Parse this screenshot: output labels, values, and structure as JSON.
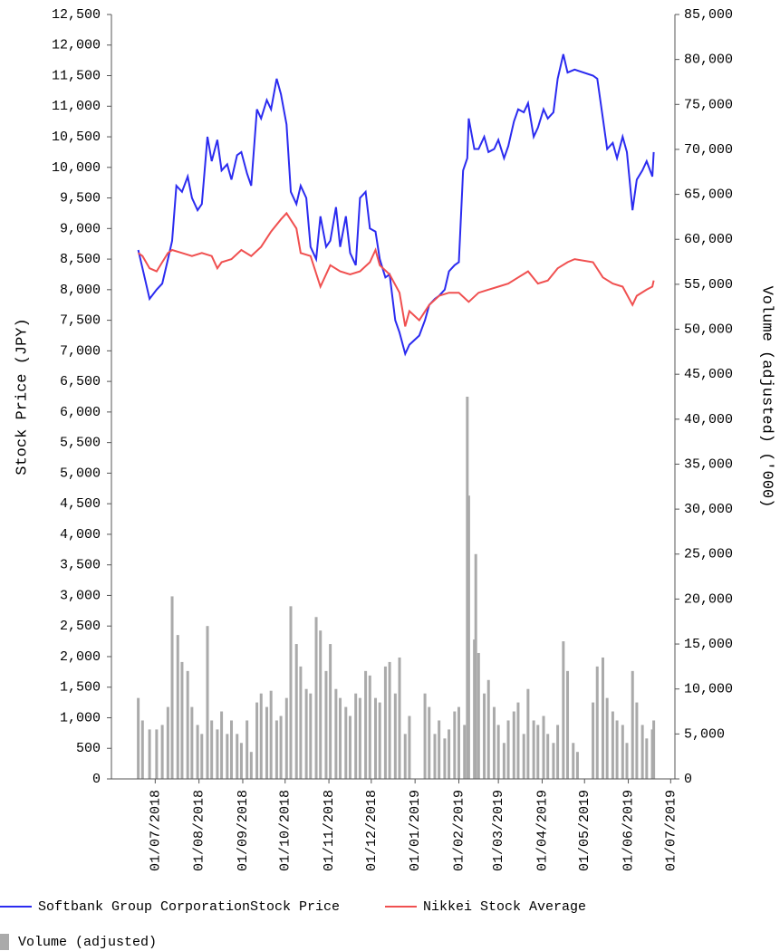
{
  "chart_data": {
    "type": "line",
    "ylabel": "Stock Price (JPY)",
    "y2label": "Volume (adjusted) ('000)",
    "xlim": [
      "2018-05-31",
      "2019-07-04"
    ],
    "xticks": [
      {
        "value": "2018-07-01",
        "label": "01/07/2018"
      },
      {
        "value": "2018-08-01",
        "label": "01/08/2018"
      },
      {
        "value": "2018-09-01",
        "label": "01/09/2018"
      },
      {
        "value": "2018-10-01",
        "label": "01/10/2018"
      },
      {
        "value": "2018-11-01",
        "label": "01/11/2018"
      },
      {
        "value": "2018-12-01",
        "label": "01/12/2018"
      },
      {
        "value": "2019-01-01",
        "label": "01/01/2019"
      },
      {
        "value": "2019-02-01",
        "label": "01/02/2019"
      },
      {
        "value": "2019-03-01",
        "label": "01/03/2019"
      },
      {
        "value": "2019-04-01",
        "label": "01/04/2019"
      },
      {
        "value": "2019-05-01",
        "label": "01/05/2019"
      },
      {
        "value": "2019-06-01",
        "label": "01/06/2019"
      },
      {
        "value": "2019-07-01",
        "label": "01/07/2019"
      }
    ],
    "ylim": [
      0,
      12500
    ],
    "yticks": [
      0,
      500,
      {
        "value": 1000,
        "label": "1,000"
      },
      {
        "value": 1500,
        "label": "1,500"
      },
      {
        "value": 2000,
        "label": "2,000"
      },
      {
        "value": 2500,
        "label": "2,500"
      },
      {
        "value": 3000,
        "label": "3,000"
      },
      {
        "value": 3500,
        "label": "3,500"
      },
      {
        "value": 4000,
        "label": "4,000"
      },
      {
        "value": 4500,
        "label": "4,500"
      },
      {
        "value": 5000,
        "label": "5,000"
      },
      {
        "value": 5500,
        "label": "5,500"
      },
      {
        "value": 6000,
        "label": "6,000"
      },
      {
        "value": 6500,
        "label": "6,500"
      },
      {
        "value": 7000,
        "label": "7,000"
      },
      {
        "value": 7500,
        "label": "7,500"
      },
      {
        "value": 8000,
        "label": "8,000"
      },
      {
        "value": 8500,
        "label": "8,500"
      },
      {
        "value": 9000,
        "label": "9,000"
      },
      {
        "value": 9500,
        "label": "9,500"
      },
      {
        "value": 10000,
        "label": "10,000"
      },
      {
        "value": 10500,
        "label": "10,500"
      },
      {
        "value": 11000,
        "label": "11,000"
      },
      {
        "value": 11500,
        "label": "11,500"
      },
      {
        "value": 12000,
        "label": "12,000"
      },
      {
        "value": 12500,
        "label": "12,500"
      }
    ],
    "y2lim": [
      0,
      85000
    ],
    "y2ticks": [
      0,
      {
        "value": 5000,
        "label": "5,000"
      },
      {
        "value": 10000,
        "label": "10,000"
      },
      {
        "value": 15000,
        "label": "15,000"
      },
      {
        "value": 20000,
        "label": "20,000"
      },
      {
        "value": 25000,
        "label": "25,000"
      },
      {
        "value": 30000,
        "label": "30,000"
      },
      {
        "value": 35000,
        "label": "35,000"
      },
      {
        "value": 40000,
        "label": "40,000"
      },
      {
        "value": 45000,
        "label": "45,000"
      },
      {
        "value": 50000,
        "label": "50,000"
      },
      {
        "value": 55000,
        "label": "55,000"
      },
      {
        "value": 60000,
        "label": "60,000"
      },
      {
        "value": 65000,
        "label": "65,000"
      },
      {
        "value": 70000,
        "label": "70,000"
      },
      {
        "value": 75000,
        "label": "75,000"
      },
      {
        "value": 80000,
        "label": "80,000"
      },
      {
        "value": 85000,
        "label": "85,000"
      }
    ],
    "series": [
      {
        "name": "Softbank Group CorporationStock Price",
        "color": "#2b2bf0",
        "x": [
          "2018-06-19",
          "2018-06-22",
          "2018-06-27",
          "2018-07-02",
          "2018-07-06",
          "2018-07-10",
          "2018-07-13",
          "2018-07-16",
          "2018-07-20",
          "2018-07-24",
          "2018-07-27",
          "2018-07-31",
          "2018-08-03",
          "2018-08-07",
          "2018-08-10",
          "2018-08-14",
          "2018-08-17",
          "2018-08-21",
          "2018-08-24",
          "2018-08-28",
          "2018-08-31",
          "2018-09-04",
          "2018-09-07",
          "2018-09-11",
          "2018-09-14",
          "2018-09-18",
          "2018-09-21",
          "2018-09-25",
          "2018-09-28",
          "2018-10-02",
          "2018-10-05",
          "2018-10-09",
          "2018-10-12",
          "2018-10-16",
          "2018-10-19",
          "2018-10-23",
          "2018-10-26",
          "2018-10-30",
          "2018-11-02",
          "2018-11-06",
          "2018-11-09",
          "2018-11-13",
          "2018-11-16",
          "2018-11-20",
          "2018-11-23",
          "2018-11-27",
          "2018-11-30",
          "2018-12-04",
          "2018-12-07",
          "2018-12-11",
          "2018-12-14",
          "2018-12-18",
          "2018-12-21",
          "2018-12-25",
          "2018-12-28",
          "2019-01-04",
          "2019-01-08",
          "2019-01-11",
          "2019-01-15",
          "2019-01-18",
          "2019-01-22",
          "2019-01-25",
          "2019-01-29",
          "2019-02-01",
          "2019-02-04",
          "2019-02-07",
          "2019-02-08",
          "2019-02-12",
          "2019-02-15",
          "2019-02-19",
          "2019-02-22",
          "2019-02-26",
          "2019-03-01",
          "2019-03-05",
          "2019-03-08",
          "2019-03-12",
          "2019-03-15",
          "2019-03-19",
          "2019-03-22",
          "2019-03-26",
          "2019-03-29",
          "2019-04-02",
          "2019-04-05",
          "2019-04-09",
          "2019-04-12",
          "2019-04-16",
          "2019-04-19",
          "2019-04-24",
          "2019-05-07",
          "2019-05-10",
          "2019-05-14",
          "2019-05-17",
          "2019-05-21",
          "2019-05-24",
          "2019-05-28",
          "2019-05-31",
          "2019-06-04",
          "2019-06-07",
          "2019-06-11",
          "2019-06-14",
          "2019-06-18",
          "2019-06-19"
        ],
        "values": [
          8650,
          8350,
          7850,
          8000,
          8100,
          8500,
          8800,
          9700,
          9600,
          9850,
          9500,
          9300,
          9400,
          10500,
          10100,
          10450,
          9950,
          10050,
          9800,
          10200,
          10250,
          9900,
          9700,
          10950,
          10800,
          11100,
          10950,
          11450,
          11200,
          10700,
          9600,
          9400,
          9700,
          9500,
          8700,
          8500,
          9200,
          8700,
          8800,
          9350,
          8700,
          9200,
          8600,
          8400,
          9500,
          9600,
          9000,
          8950,
          8500,
          8200,
          8250,
          7500,
          7300,
          6950,
          7100,
          7250,
          7500,
          7750,
          7850,
          7900,
          8000,
          8300,
          8400,
          8450,
          9950,
          10150,
          10800,
          10300,
          10300,
          10500,
          10250,
          10300,
          10450,
          10150,
          10350,
          10750,
          10950,
          10900,
          11050,
          10500,
          10650,
          10950,
          10800,
          10900,
          11450,
          11850,
          11550,
          11600,
          11500,
          11450,
          10800,
          10300,
          10400,
          10150,
          10500,
          10250,
          9300,
          9800,
          9950,
          10100,
          9850,
          10250
        ]
      },
      {
        "name": "Nikkei Stock Average",
        "color": "#f05050",
        "x": [
          "2018-06-19",
          "2018-06-22",
          "2018-06-27",
          "2018-07-02",
          "2018-07-06",
          "2018-07-10",
          "2018-07-13",
          "2018-07-20",
          "2018-07-27",
          "2018-08-03",
          "2018-08-10",
          "2018-08-14",
          "2018-08-17",
          "2018-08-24",
          "2018-08-31",
          "2018-09-07",
          "2018-09-14",
          "2018-09-21",
          "2018-09-28",
          "2018-10-02",
          "2018-10-09",
          "2018-10-12",
          "2018-10-19",
          "2018-10-26",
          "2018-11-02",
          "2018-11-09",
          "2018-11-16",
          "2018-11-23",
          "2018-11-30",
          "2018-12-04",
          "2018-12-07",
          "2018-12-14",
          "2018-12-21",
          "2018-12-25",
          "2018-12-28",
          "2019-01-04",
          "2019-01-11",
          "2019-01-18",
          "2019-01-25",
          "2019-02-01",
          "2019-02-08",
          "2019-02-15",
          "2019-02-22",
          "2019-03-01",
          "2019-03-08",
          "2019-03-15",
          "2019-03-22",
          "2019-03-29",
          "2019-04-05",
          "2019-04-12",
          "2019-04-19",
          "2019-04-24",
          "2019-05-07",
          "2019-05-14",
          "2019-05-21",
          "2019-05-28",
          "2019-06-04",
          "2019-06-07",
          "2019-06-14",
          "2019-06-18",
          "2019-06-19"
        ],
        "values": [
          8600,
          8550,
          8350,
          8300,
          8450,
          8600,
          8650,
          8600,
          8550,
          8600,
          8550,
          8350,
          8450,
          8500,
          8650,
          8550,
          8700,
          8950,
          9150,
          9250,
          9000,
          8600,
          8550,
          8050,
          8400,
          8300,
          8250,
          8300,
          8450,
          8650,
          8400,
          8250,
          7950,
          7400,
          7650,
          7500,
          7750,
          7900,
          7950,
          7950,
          7800,
          7950,
          8000,
          8050,
          8100,
          8200,
          8300,
          8100,
          8150,
          8350,
          8450,
          8500,
          8450,
          8200,
          8100,
          8050,
          7750,
          7900,
          8000,
          8050,
          8150
        ]
      },
      {
        "name": "Volume (adjusted)",
        "type": "bar",
        "axis": "y2",
        "color": "#aaaaaa",
        "x": [
          "2018-06-19",
          "2018-06-22",
          "2018-06-27",
          "2018-07-02",
          "2018-07-06",
          "2018-07-10",
          "2018-07-13",
          "2018-07-17",
          "2018-07-20",
          "2018-07-24",
          "2018-07-27",
          "2018-07-31",
          "2018-08-03",
          "2018-08-07",
          "2018-08-10",
          "2018-08-14",
          "2018-08-17",
          "2018-08-21",
          "2018-08-24",
          "2018-08-28",
          "2018-08-31",
          "2018-09-04",
          "2018-09-07",
          "2018-09-11",
          "2018-09-14",
          "2018-09-18",
          "2018-09-21",
          "2018-09-25",
          "2018-09-28",
          "2018-10-02",
          "2018-10-05",
          "2018-10-09",
          "2018-10-12",
          "2018-10-16",
          "2018-10-19",
          "2018-10-23",
          "2018-10-26",
          "2018-10-30",
          "2018-11-02",
          "2018-11-06",
          "2018-11-09",
          "2018-11-13",
          "2018-11-16",
          "2018-11-20",
          "2018-11-23",
          "2018-11-27",
          "2018-11-30",
          "2018-12-04",
          "2018-12-07",
          "2018-12-11",
          "2018-12-14",
          "2018-12-18",
          "2018-12-21",
          "2018-12-25",
          "2018-12-28",
          "2019-01-08",
          "2019-01-11",
          "2019-01-15",
          "2019-01-18",
          "2019-01-22",
          "2019-01-25",
          "2019-01-29",
          "2019-02-01",
          "2019-02-05",
          "2019-02-07",
          "2019-02-08",
          "2019-02-12",
          "2019-02-13",
          "2019-02-15",
          "2019-02-19",
          "2019-02-22",
          "2019-02-26",
          "2019-03-01",
          "2019-03-05",
          "2019-03-08",
          "2019-03-12",
          "2019-03-15",
          "2019-03-19",
          "2019-03-22",
          "2019-03-26",
          "2019-03-29",
          "2019-04-02",
          "2019-04-05",
          "2019-04-09",
          "2019-04-12",
          "2019-04-16",
          "2019-04-19",
          "2019-04-23",
          "2019-04-26",
          "2019-05-07",
          "2019-05-10",
          "2019-05-14",
          "2019-05-17",
          "2019-05-21",
          "2019-05-24",
          "2019-05-28",
          "2019-05-31",
          "2019-06-04",
          "2019-06-07",
          "2019-06-11",
          "2019-06-14",
          "2019-06-18",
          "2019-06-19"
        ],
        "values": [
          9000,
          6500,
          5500,
          5500,
          6000,
          8000,
          20300,
          16000,
          13000,
          12000,
          8000,
          6000,
          5000,
          17000,
          6500,
          5500,
          7500,
          5000,
          6500,
          5000,
          4000,
          6500,
          3000,
          8500,
          9500,
          8000,
          9800,
          6500,
          7000,
          9000,
          19200,
          15000,
          12500,
          10000,
          9500,
          18000,
          16500,
          12000,
          15000,
          10000,
          9000,
          8000,
          7000,
          9500,
          9000,
          12000,
          11500,
          9000,
          8500,
          12500,
          13000,
          9500,
          13500,
          5000,
          7000,
          9500,
          8000,
          5000,
          6500,
          4500,
          5500,
          7500,
          8000,
          6000,
          42500,
          31500,
          15500,
          25000,
          14000,
          9500,
          11000,
          8000,
          6000,
          4000,
          6500,
          7500,
          8500,
          5000,
          10000,
          6500,
          6000,
          7000,
          5000,
          4000,
          6000,
          15300,
          12000,
          4000,
          3000,
          8500,
          12500,
          13500,
          9000,
          7500,
          6500,
          6000,
          4000,
          12000,
          8500,
          6000,
          4500,
          5500,
          6500
        ]
      }
    ]
  }
}
